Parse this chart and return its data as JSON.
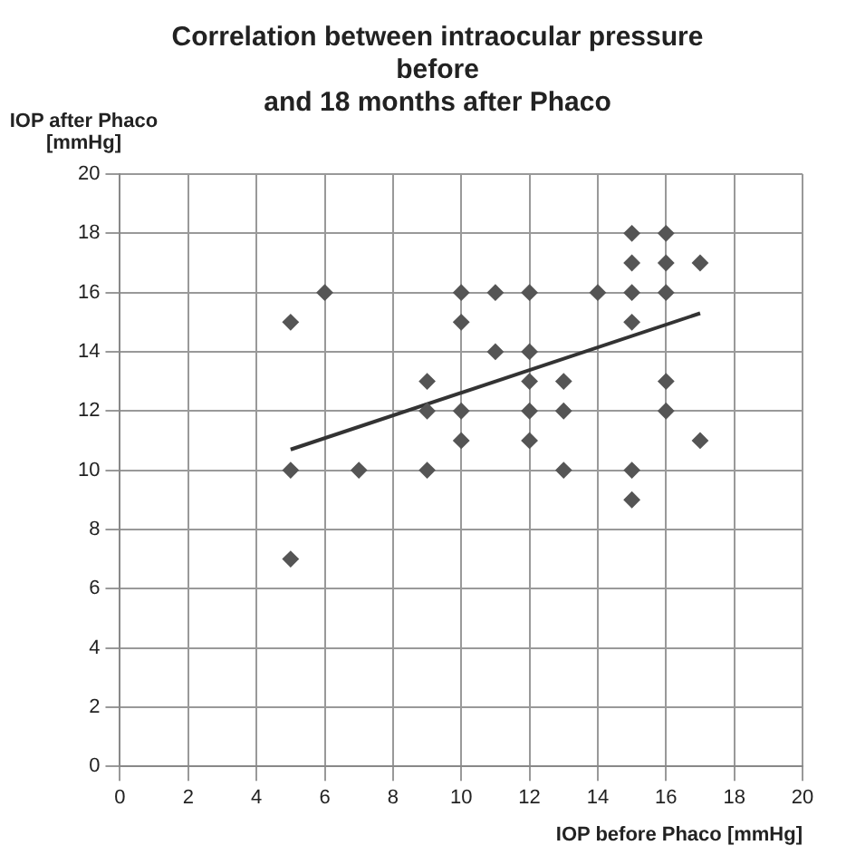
{
  "chart_data": {
    "type": "scatter",
    "title": "Correlation between intraocular pressure\nbefore\nand 18 months after Phaco",
    "xlabel": "IOP before Phaco [mmHg]",
    "ylabel": "IOP after Phaco [mmHg]",
    "xlim": [
      0,
      20
    ],
    "xticks": [
      0,
      2,
      4,
      6,
      8,
      10,
      12,
      14,
      16,
      18,
      20
    ],
    "ylim": [
      0,
      20
    ],
    "yticks": [
      0,
      2,
      4,
      6,
      8,
      10,
      12,
      14,
      16,
      18,
      20
    ],
    "grid": true,
    "legend": false,
    "marker": "diamond",
    "series": [
      {
        "color": "#555555",
        "x": [
          5,
          5,
          5,
          6,
          7,
          9,
          9,
          9,
          10,
          10,
          10,
          10,
          11,
          11,
          12,
          12,
          12,
          12,
          12,
          13,
          13,
          13,
          14,
          15,
          15,
          15,
          15,
          15,
          15,
          16,
          16,
          16,
          16,
          16,
          17,
          17
        ],
        "values": [
          15,
          10,
          7,
          16,
          10,
          13,
          12,
          10,
          16,
          15,
          12,
          11,
          16,
          14,
          16,
          14,
          13,
          12,
          11,
          13,
          12,
          10,
          16,
          18,
          17,
          16,
          15,
          10,
          9,
          18,
          17,
          16,
          13,
          12,
          17,
          11
        ]
      },
      {
        "type": "line",
        "color": "#333333",
        "x": [
          5,
          17
        ],
        "values": [
          10.7,
          15.3
        ],
        "marker": "none"
      }
    ]
  }
}
